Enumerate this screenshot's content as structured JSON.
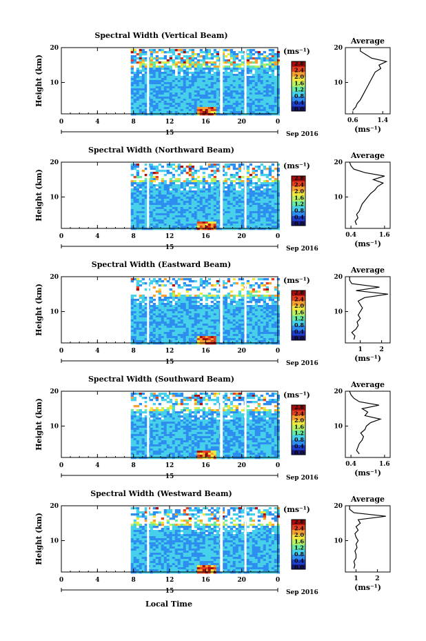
{
  "figure": {
    "time_axis_label": "Local Time",
    "date_day": "15",
    "date_month": "Sep 2016",
    "colorbar_unit": "(ms⁻¹)",
    "colorbar_ticks": [
      "0.0",
      "0.4",
      "0.8",
      "1.2",
      "1.6",
      "2.0",
      "2.4",
      "2.8"
    ],
    "colors": [
      "#1a1a7a",
      "#1f3fd0",
      "#2e8ef0",
      "#46d0ea",
      "#68e8a0",
      "#b8f060",
      "#f0e840",
      "#f5a030",
      "#e04020",
      "#a80c0c"
    ]
  },
  "chart_data": [
    {
      "type": "heatmap",
      "title": "Spectral Width (Vertical Beam)",
      "ylabel": "Height (km)",
      "xlabel": "Local Time",
      "x_ticks": [
        "0",
        "4",
        "8",
        "12",
        "16",
        "20",
        "0"
      ],
      "y_ticks": [
        "10",
        "20"
      ],
      "xlim": [
        0,
        24
      ],
      "ylim": [
        1,
        20
      ],
      "data_start_hour": 7.7,
      "gaps_hours": [
        [
          9.5,
          9.7
        ],
        [
          17.6,
          17.9
        ],
        [
          20.3,
          20.5
        ]
      ],
      "colorbar_range": [
        0,
        3.0
      ],
      "profile": {
        "title": "Average",
        "xlabel": "(ms⁻¹)",
        "x_ticks": [
          "0.6",
          "1.4"
        ],
        "xlim": [
          0.4,
          1.6
        ],
        "heights": [
          2,
          3,
          4,
          5,
          6,
          7,
          8,
          9,
          10,
          11,
          12,
          13,
          14,
          15,
          16,
          17,
          18,
          19,
          20
        ],
        "values": [
          0.6,
          0.68,
          0.72,
          0.8,
          0.85,
          0.9,
          0.95,
          1.0,
          1.05,
          1.1,
          1.15,
          1.2,
          1.35,
          1.3,
          1.5,
          1.1,
          0.95,
          0.8,
          0.8
        ]
      }
    },
    {
      "type": "heatmap",
      "title": "Spectral Width (Northward Beam)",
      "ylabel": "Height (km)",
      "xlabel": "Local Time",
      "x_ticks": [
        "0",
        "4",
        "8",
        "12",
        "16",
        "20",
        "0"
      ],
      "y_ticks": [
        "10",
        "20"
      ],
      "xlim": [
        0,
        24
      ],
      "ylim": [
        1,
        20
      ],
      "data_start_hour": 7.7,
      "gaps_hours": [
        [
          9.5,
          9.7
        ],
        [
          17.6,
          17.9
        ],
        [
          20.3,
          20.5
        ]
      ],
      "colorbar_range": [
        0,
        3.0
      ],
      "profile": {
        "title": "Average",
        "xlabel": "(ms⁻¹)",
        "x_ticks": [
          "0.4",
          "1.6"
        ],
        "xlim": [
          0.2,
          1.8
        ],
        "heights": [
          2,
          3,
          4,
          5,
          6,
          7,
          8,
          9,
          10,
          11,
          12,
          13,
          14,
          15,
          16,
          17,
          18,
          19,
          20
        ],
        "values": [
          0.6,
          0.55,
          0.65,
          0.6,
          0.7,
          0.75,
          0.8,
          0.9,
          1.0,
          1.1,
          1.25,
          1.35,
          1.55,
          1.2,
          1.6,
          0.9,
          0.5,
          0.4,
          0.35
        ]
      }
    },
    {
      "type": "heatmap",
      "title": "Spectral Width (Eastward Beam)",
      "ylabel": "Height (km)",
      "xlabel": "Local Time",
      "x_ticks": [
        "0",
        "4",
        "8",
        "12",
        "16",
        "20",
        "0"
      ],
      "y_ticks": [
        "10",
        "20"
      ],
      "xlim": [
        0,
        24
      ],
      "ylim": [
        1,
        20
      ],
      "data_start_hour": 7.7,
      "gaps_hours": [
        [
          9.5,
          9.7
        ],
        [
          17.6,
          17.9
        ],
        [
          20.3,
          20.5
        ]
      ],
      "colorbar_range": [
        0,
        3.0
      ],
      "profile": {
        "title": "Average",
        "xlabel": "(ms⁻¹)",
        "x_ticks": [
          "1",
          "2"
        ],
        "xlim": [
          0.3,
          2.4
        ],
        "heights": [
          2,
          3,
          4,
          5,
          6,
          7,
          8,
          9,
          10,
          11,
          12,
          13,
          14,
          15,
          16,
          17,
          18,
          19,
          20
        ],
        "values": [
          0.7,
          0.75,
          0.6,
          0.8,
          0.9,
          0.85,
          1.0,
          0.9,
          1.0,
          1.1,
          1.0,
          0.9,
          1.2,
          2.3,
          0.8,
          1.9,
          0.6,
          0.5,
          0.5
        ]
      }
    },
    {
      "type": "heatmap",
      "title": "Spectral Width (Southward Beam)",
      "ylabel": "Height (km)",
      "xlabel": "Local Time",
      "x_ticks": [
        "0",
        "4",
        "8",
        "12",
        "16",
        "20",
        "0"
      ],
      "y_ticks": [
        "10",
        "20"
      ],
      "xlim": [
        0,
        24
      ],
      "ylim": [
        1,
        20
      ],
      "data_start_hour": 7.7,
      "gaps_hours": [
        [
          9.5,
          9.7
        ],
        [
          17.6,
          17.9
        ],
        [
          20.3,
          20.5
        ]
      ],
      "colorbar_range": [
        0,
        3.0
      ],
      "profile": {
        "title": "Average",
        "xlabel": "(ms⁻¹)",
        "x_ticks": [
          "0.4",
          "1.6"
        ],
        "xlim": [
          0.2,
          1.8
        ],
        "heights": [
          2,
          3,
          4,
          5,
          6,
          7,
          8,
          9,
          10,
          11,
          12,
          13,
          14,
          15,
          16,
          17,
          18,
          19,
          20
        ],
        "values": [
          0.7,
          0.6,
          0.65,
          0.7,
          0.8,
          0.85,
          0.75,
          0.9,
          0.95,
          1.1,
          1.45,
          0.9,
          1.0,
          0.8,
          1.4,
          0.7,
          0.5,
          0.4,
          0.35
        ]
      }
    },
    {
      "type": "heatmap",
      "title": "Spectral Width (Westward Beam)",
      "ylabel": "Height (km)",
      "xlabel": "Local Time",
      "x_ticks": [
        "0",
        "4",
        "8",
        "12",
        "16",
        "20",
        "0"
      ],
      "y_ticks": [
        "10",
        "20"
      ],
      "xlim": [
        0,
        24
      ],
      "ylim": [
        1,
        20
      ],
      "data_start_hour": 7.7,
      "gaps_hours": [
        [
          9.5,
          9.7
        ],
        [
          17.6,
          17.9
        ],
        [
          20.3,
          20.5
        ]
      ],
      "colorbar_range": [
        0,
        3.0
      ],
      "profile": {
        "title": "Average",
        "xlabel": "(ms⁻¹)",
        "x_ticks": [
          "1",
          "2"
        ],
        "xlim": [
          0.5,
          2.6
        ],
        "heights": [
          2,
          3,
          4,
          5,
          6,
          7,
          8,
          9,
          10,
          11,
          12,
          13,
          14,
          15,
          16,
          17,
          18,
          19,
          20
        ],
        "values": [
          0.9,
          0.95,
          0.9,
          1.0,
          1.0,
          0.95,
          1.05,
          1.0,
          1.1,
          1.0,
          0.95,
          1.1,
          1.0,
          1.2,
          1.1,
          2.4,
          0.9,
          0.7,
          0.7
        ]
      }
    }
  ]
}
